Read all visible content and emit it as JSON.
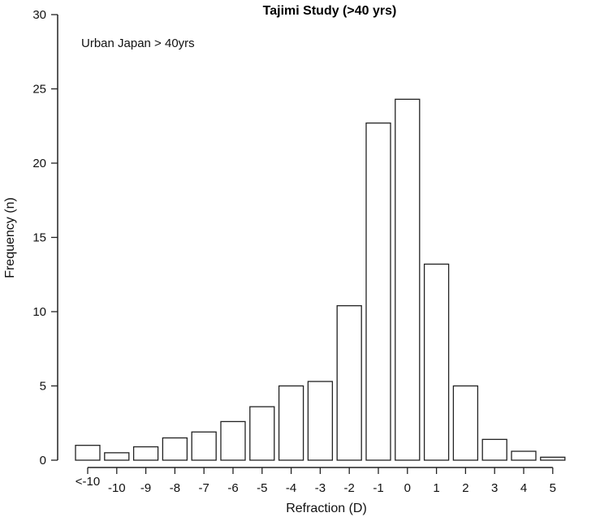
{
  "chart_data": {
    "type": "bar",
    "title": "Tajimi Study (>40 yrs)",
    "annotation": "Urban Japan > 40yrs",
    "xlabel": "Refraction (D)",
    "ylabel": "Frequency (n)",
    "ylim": [
      0,
      30
    ],
    "yticks": [
      0,
      5,
      10,
      15,
      20,
      25,
      30
    ],
    "grid": false,
    "categories": [
      "<-10",
      "-10",
      "-9",
      "-8",
      "-7",
      "-6",
      "-5",
      "-4",
      "-3",
      "-2",
      "-1",
      "0",
      "1",
      "2",
      "3",
      "4",
      "5"
    ],
    "values": [
      1.0,
      0.5,
      0.9,
      1.5,
      1.9,
      2.6,
      3.6,
      5.0,
      5.3,
      10.4,
      22.7,
      24.3,
      13.2,
      5.0,
      1.4,
      0.6,
      0.2
    ]
  }
}
